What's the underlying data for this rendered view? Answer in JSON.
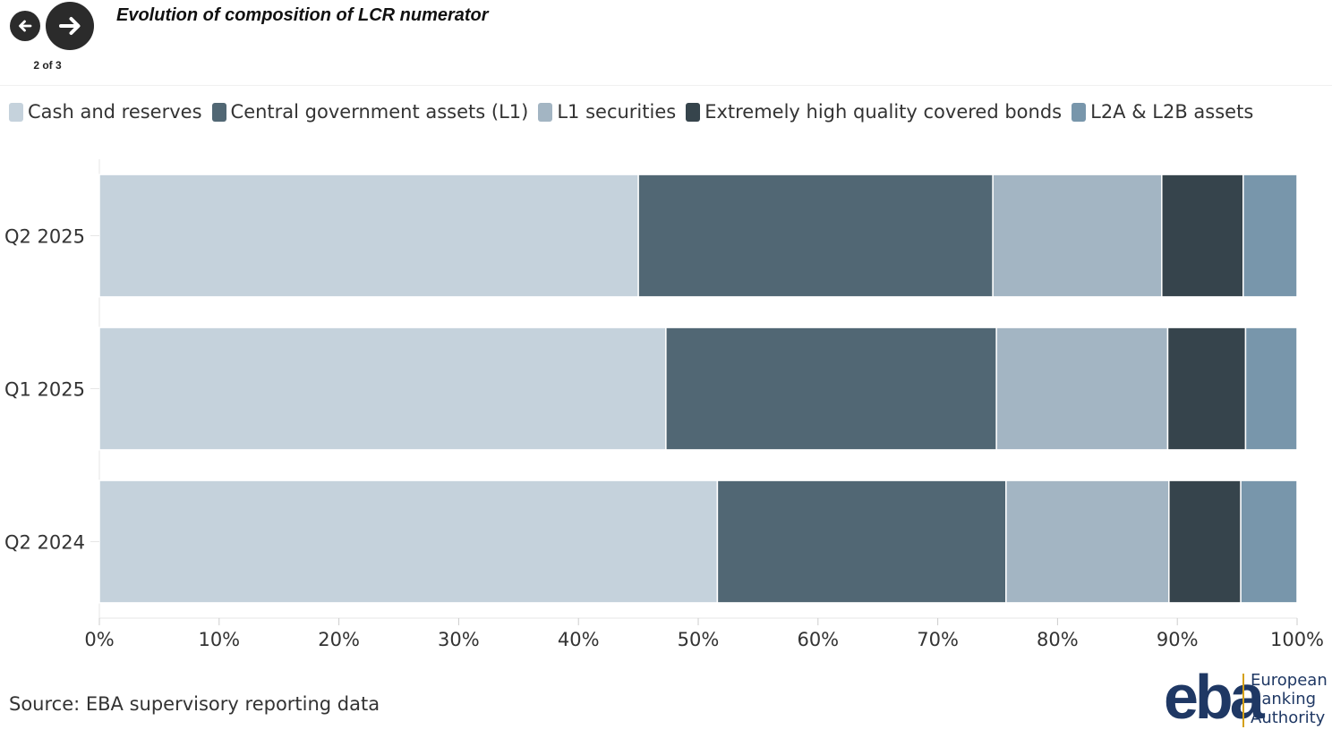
{
  "nav": {
    "page_counter": "2 of 3",
    "prev_icon": "arrow-left-icon",
    "next_icon": "arrow-right-icon"
  },
  "title": "Evolution of composition of LCR numerator",
  "source": "Source: EBA supervisory reporting data",
  "logo": {
    "mark": "eba",
    "line1": "European",
    "line2": "Banking",
    "line3": "Authority",
    "colors": {
      "mark": "#1f3864",
      "bar": "#d4a017"
    }
  },
  "chart_data": {
    "type": "bar",
    "orientation": "horizontal",
    "stacking": "percent",
    "categories": [
      "Q2 2025",
      "Q1 2025",
      "Q2 2024"
    ],
    "series": [
      {
        "name": "Cash and reserves",
        "color": "#c5d2dc",
        "values": [
          45.0,
          47.3,
          51.6
        ]
      },
      {
        "name": "Central government assets (L1)",
        "color": "#516774",
        "values": [
          29.6,
          27.6,
          24.1
        ]
      },
      {
        "name": "L1 securities",
        "color": "#a3b5c3",
        "values": [
          14.1,
          14.3,
          13.6
        ]
      },
      {
        "name": "Extremely high quality covered bonds",
        "color": "#36444c",
        "values": [
          6.8,
          6.5,
          6.0
        ]
      },
      {
        "name": "L2A & L2B assets",
        "color": "#7896ab",
        "values": [
          4.5,
          4.3,
          4.7
        ]
      }
    ],
    "xlim": [
      0,
      100
    ],
    "xticks": [
      "0%",
      "10%",
      "20%",
      "30%",
      "40%",
      "50%",
      "60%",
      "70%",
      "80%",
      "90%",
      "100%"
    ],
    "legend_position": "top-left",
    "grid": false
  }
}
